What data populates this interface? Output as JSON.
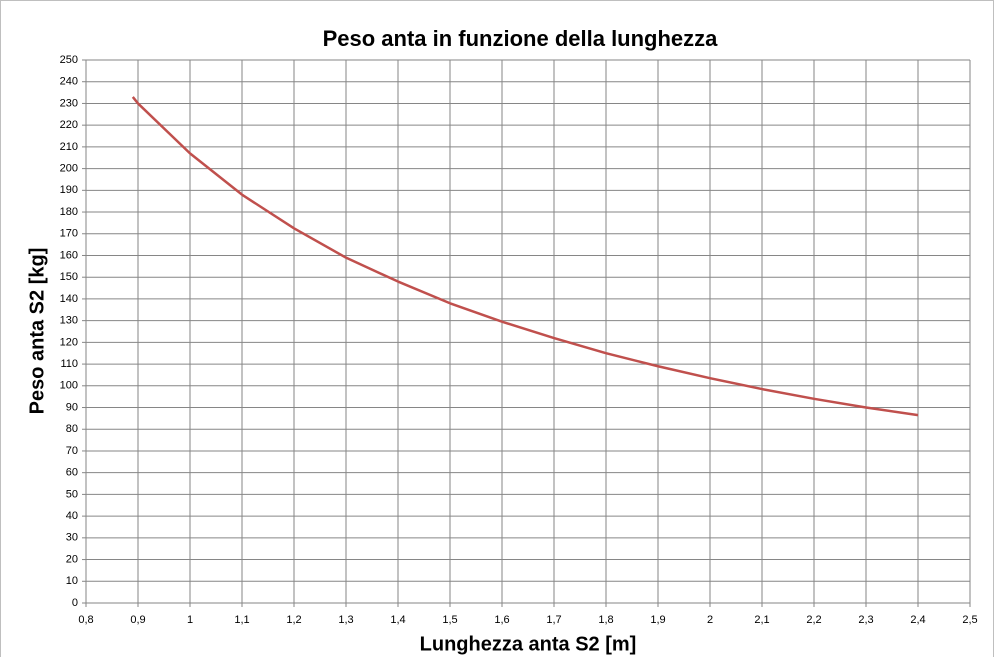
{
  "chart_data": {
    "type": "line",
    "title": "Peso anta in funzione della lunghezza",
    "xlabel": "Lunghezza anta S2 [m]",
    "ylabel": "Peso anta S2 [kg]",
    "x": [
      0.89,
      0.9,
      1.0,
      1.1,
      1.2,
      1.3,
      1.4,
      1.5,
      1.6,
      1.7,
      1.8,
      1.9,
      2.0,
      2.1,
      2.2,
      2.3,
      2.4
    ],
    "series": [
      {
        "name": "Peso anta S2",
        "color": "#c0504d",
        "values": [
          233,
          230,
          207,
          188,
          172.5,
          159,
          148,
          138,
          129.5,
          122,
          115,
          109,
          103.5,
          98.5,
          94,
          90,
          86.5
        ]
      }
    ],
    "xlim": [
      0.8,
      2.5
    ],
    "xticks": [
      {
        "value": 0.8,
        "label": "0,8"
      },
      {
        "value": 0.9,
        "label": "0,9"
      },
      1,
      {
        "value": 1.1,
        "label": "1,1"
      },
      {
        "value": 1.2,
        "label": "1,2"
      },
      {
        "value": 1.3,
        "label": "1,3"
      },
      {
        "value": 1.4,
        "label": "1,4"
      },
      {
        "value": 1.5,
        "label": "1,5"
      },
      {
        "value": 1.6,
        "label": "1,6"
      },
      {
        "value": 1.7,
        "label": "1,7"
      },
      {
        "value": 1.8,
        "label": "1,8"
      },
      {
        "value": 1.9,
        "label": "1,9"
      },
      2,
      {
        "value": 2.1,
        "label": "2,1"
      },
      {
        "value": 2.2,
        "label": "2,2"
      },
      {
        "value": 2.3,
        "label": "2,3"
      },
      {
        "value": 2.4,
        "label": "2,4"
      },
      {
        "value": 2.5,
        "label": "2,5"
      }
    ],
    "ylim": [
      0,
      250
    ],
    "yticks": [
      0,
      10,
      20,
      30,
      40,
      50,
      60,
      70,
      80,
      90,
      100,
      110,
      120,
      130,
      140,
      150,
      160,
      170,
      180,
      190,
      200,
      210,
      220,
      230,
      240,
      250
    ],
    "grid": true
  }
}
